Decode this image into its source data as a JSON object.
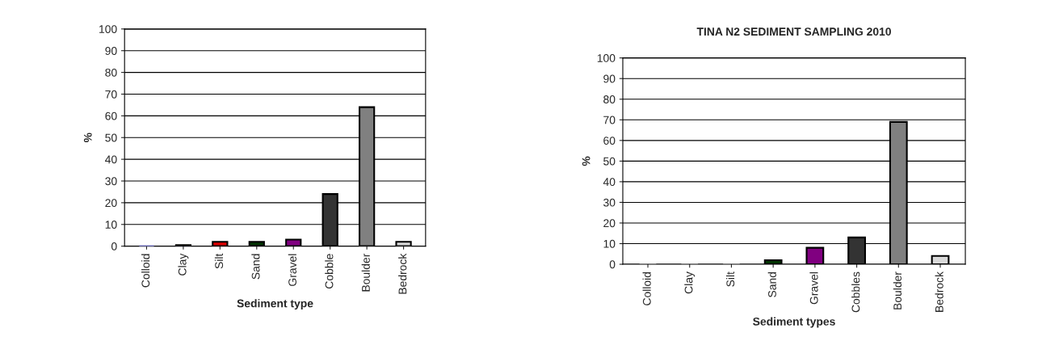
{
  "chart_data": [
    {
      "type": "bar",
      "xlabel": "Sediment type",
      "ylabel": "%",
      "categories": [
        "Colloid",
        "Clay",
        "Silt",
        "Sand",
        "Gravel",
        "Cobble",
        "Boulder",
        "Bedrock"
      ],
      "values": [
        0,
        0.5,
        2,
        2,
        3,
        24,
        64,
        2
      ],
      "colors": [
        "#7f7fd0",
        "#7f7fd0",
        "#e00000",
        "#003300",
        "#800080",
        "#333333",
        "#808080",
        "#d9d9d9"
      ],
      "ylim": [
        0,
        100
      ],
      "yticks": [
        0,
        10,
        20,
        30,
        40,
        50,
        60,
        70,
        80,
        90,
        100
      ],
      "grid": "y"
    },
    {
      "type": "bar",
      "title": "TINA N2 SEDIMENT SAMPLING 2010",
      "xlabel": "Sediment types",
      "ylabel": "%",
      "categories": [
        "Colloid",
        "Clay",
        "Silt",
        "Sand",
        "Gravel",
        "Cobbles",
        "Boulder",
        "Bedrock"
      ],
      "values": [
        0,
        0,
        0,
        2,
        8,
        13,
        69,
        4
      ],
      "colors": [
        "#808080",
        "#808080",
        "#808080",
        "#003300",
        "#800080",
        "#333333",
        "#808080",
        "#d9d9d9"
      ],
      "ylim": [
        0,
        100
      ],
      "yticks": [
        0,
        10,
        20,
        30,
        40,
        50,
        60,
        70,
        80,
        90,
        100
      ],
      "grid": "y"
    }
  ]
}
